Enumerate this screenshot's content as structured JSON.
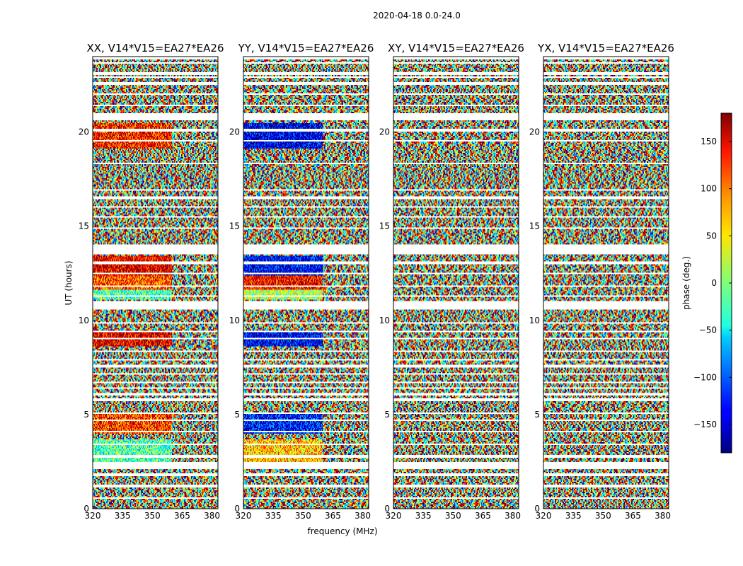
{
  "chart_data": {
    "type": "heatmap",
    "title": "2020-04-18 0.0-24.0",
    "xlabel": "frequency (MHz)",
    "ylabel": "UT (hours)",
    "xlim": [
      320,
      383
    ],
    "ylim": [
      0,
      24
    ],
    "x_ticks": [
      "320",
      "335",
      "350",
      "365",
      "380"
    ],
    "y_ticks": [
      "0",
      "5",
      "10",
      "15",
      "20"
    ],
    "panels": [
      {
        "title": "XX, V14*V15=EA27*EA26",
        "mode": "xx"
      },
      {
        "title": "YY, V14*V15=EA27*EA26",
        "mode": "yy"
      },
      {
        "title": "XY, V14*V15=EA27*EA26",
        "mode": "noise"
      },
      {
        "title": "YX, V14*V15=EA27*EA26",
        "mode": "noise"
      }
    ],
    "colorbar": {
      "label": "phase (deg.)",
      "range": [
        -180,
        180
      ],
      "ticks": [
        "150",
        "100",
        "50",
        "0",
        "−50",
        "−100",
        "−150"
      ],
      "colormap": "jet"
    }
  }
}
